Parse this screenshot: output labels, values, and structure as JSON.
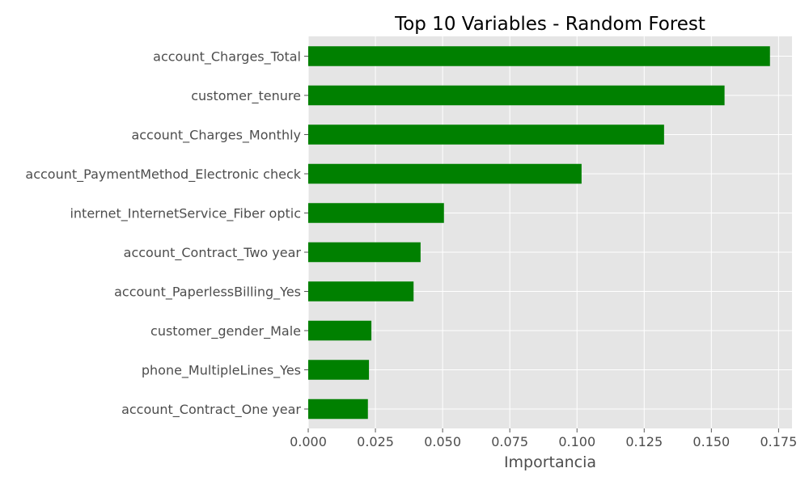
{
  "chart_data": {
    "type": "bar",
    "orientation": "horizontal",
    "title": "Top 10 Variables - Random Forest",
    "xlabel": "Importancia",
    "ylabel": "",
    "xlim": [
      0,
      0.18
    ],
    "xticks": [
      0.0,
      0.025,
      0.05,
      0.075,
      0.1,
      0.125,
      0.15,
      0.175
    ],
    "xtick_labels": [
      "0.000",
      "0.025",
      "0.050",
      "0.075",
      "0.100",
      "0.125",
      "0.150",
      "0.175"
    ],
    "grid": true,
    "bar_color": "#008000",
    "categories": [
      "account_Charges_Total",
      "customer_tenure",
      "account_Charges_Monthly",
      "account_PaymentMethod_Electronic check",
      "internet_InternetService_Fiber optic",
      "account_Contract_Two year",
      "account_PaperlessBilling_Yes",
      "customer_gender_Male",
      "phone_MultipleLines_Yes",
      "account_Contract_One year"
    ],
    "values": [
      0.1718,
      0.1549,
      0.1324,
      0.1017,
      0.0505,
      0.0418,
      0.0392,
      0.0235,
      0.0226,
      0.0222
    ]
  }
}
